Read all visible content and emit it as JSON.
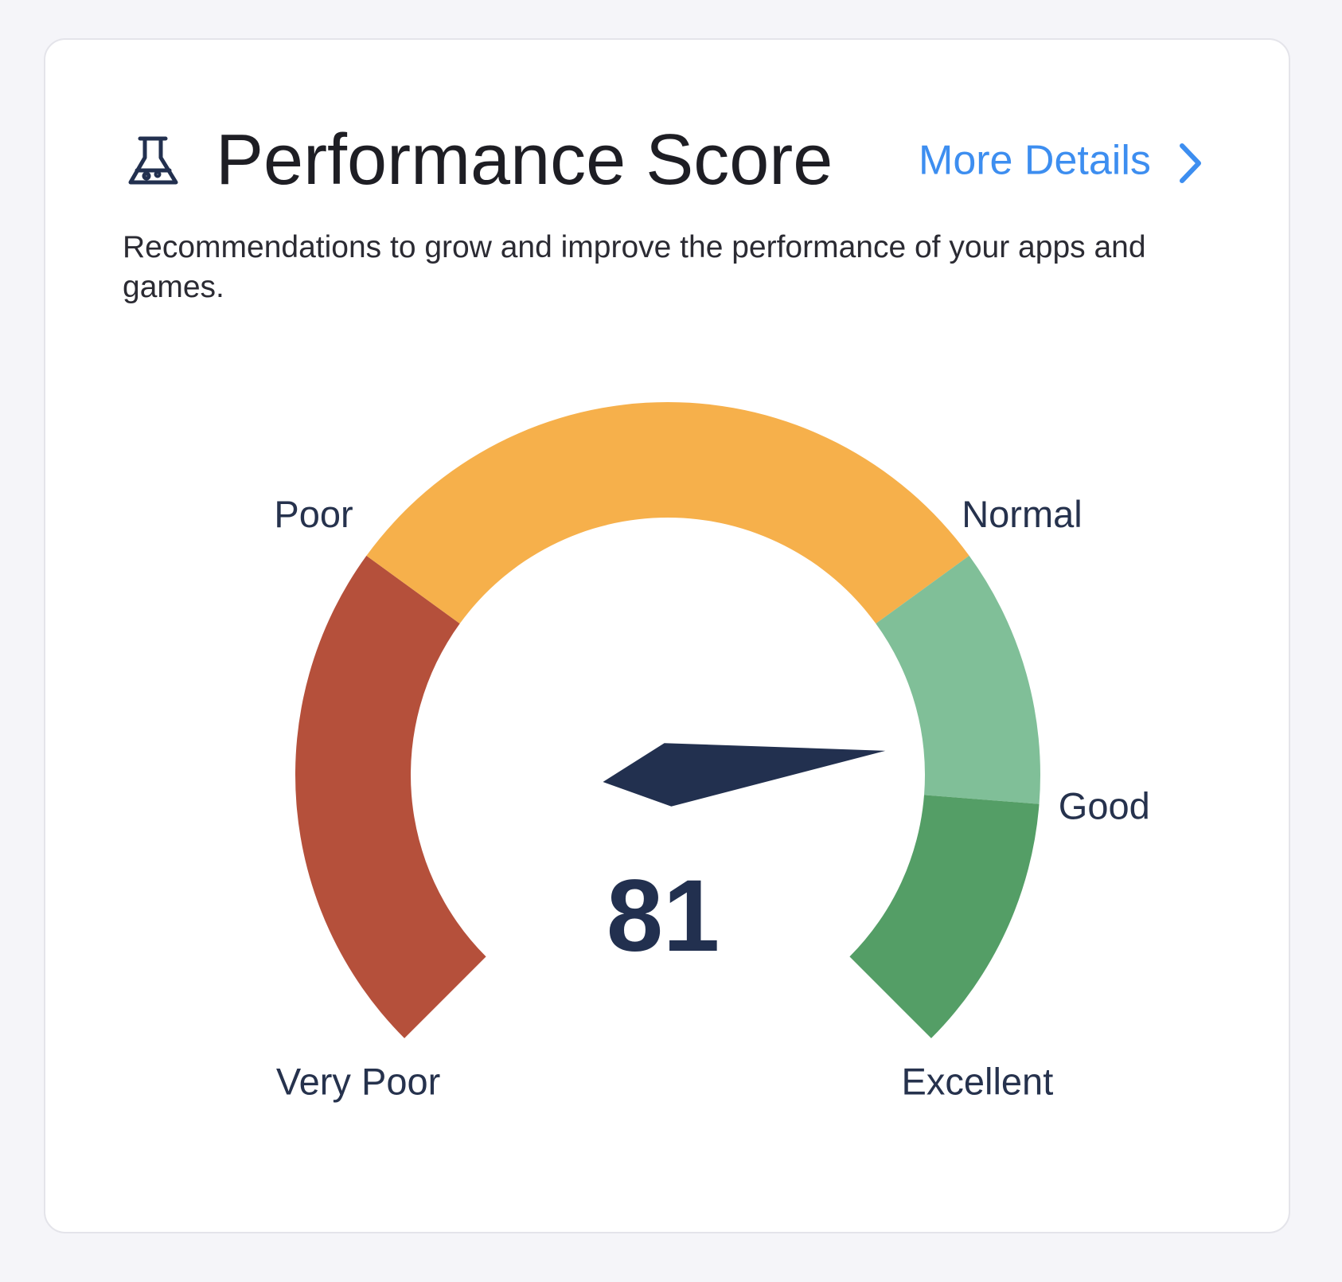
{
  "chart_data": {
    "type": "gauge",
    "title": "Performance Score",
    "subtitle": "Recommendations to grow and improve the performance of your apps and games.",
    "link": "More Details",
    "value": 81,
    "ylim": [
      0,
      100
    ],
    "thresholds": [
      0,
      30,
      70,
      85,
      100
    ],
    "threshold_labels": [
      "Very Poor",
      "Poor",
      "Normal",
      "Good",
      "Excellent"
    ],
    "band_colors": [
      "#b5503b",
      "#f6b04b",
      "#80bf98",
      "#549e66"
    ],
    "needle_color": "#22304f"
  }
}
